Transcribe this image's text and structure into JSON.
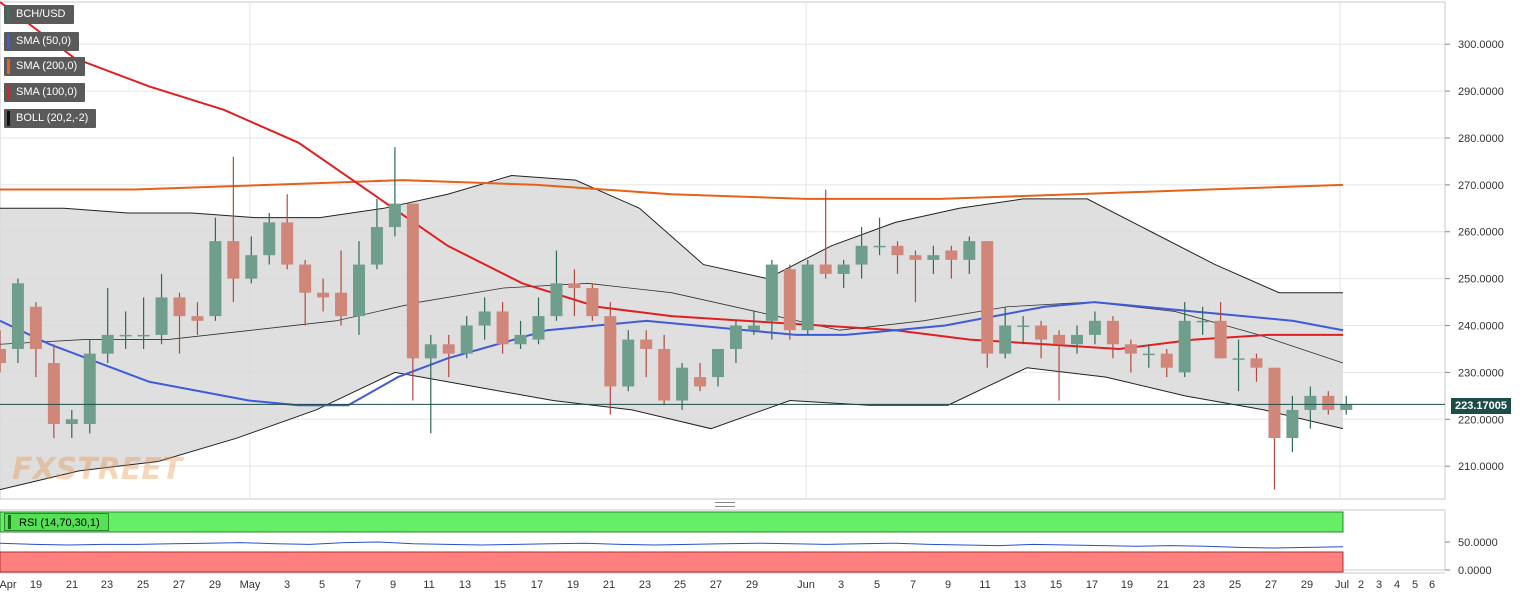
{
  "legend": {
    "items": [
      {
        "label": "BCH/USD",
        "color": "#2b7a5a"
      },
      {
        "label": "SMA (50,0)",
        "color": "#3f5bd9"
      },
      {
        "label": "SMA (200,0)",
        "color": "#e8601a"
      },
      {
        "label": "SMA (100,0)",
        "color": "#e02020"
      },
      {
        "label": "BOLL (20,2,-2)",
        "color": "#111111"
      }
    ]
  },
  "rsi_label": "RSI (14,70,30,1)",
  "last_price": "223.17005",
  "watermark": "FXSTREET",
  "chart_data": {
    "type": "candlestick",
    "symbol": "BCH/USD",
    "y_axis": {
      "min": 203,
      "max": 309,
      "ticks": [
        "300.0000",
        "290.0000",
        "280.0000",
        "270.0000",
        "260.0000",
        "250.0000",
        "240.0000",
        "230.0000",
        "220.0000",
        "210.0000"
      ]
    },
    "x_axis_ticks": [
      "Apr",
      "19",
      "21",
      "23",
      "25",
      "27",
      "29",
      "May",
      "3",
      "5",
      "7",
      "9",
      "11",
      "13",
      "15",
      "17",
      "19",
      "21",
      "23",
      "25",
      "27",
      "29",
      "Jun",
      "3",
      "5",
      "7",
      "9",
      "11",
      "13",
      "15",
      "17",
      "19",
      "21",
      "23",
      "25",
      "27",
      "29",
      "Jul",
      "2",
      "3",
      "4",
      "5",
      "6"
    ],
    "candles": [
      {
        "d": "Apr 17",
        "o": 235,
        "h": 239,
        "l": 230,
        "c": 232
      },
      {
        "d": "Apr 18",
        "o": 235,
        "h": 250,
        "l": 232,
        "c": 249
      },
      {
        "d": "Apr 19",
        "o": 244,
        "h": 245,
        "l": 229,
        "c": 235
      },
      {
        "d": "Apr 20",
        "o": 232,
        "h": 236,
        "l": 216,
        "c": 219
      },
      {
        "d": "Apr 21",
        "o": 219,
        "h": 222,
        "l": 216,
        "c": 220
      },
      {
        "d": "Apr 22",
        "o": 219,
        "h": 237,
        "l": 217,
        "c": 234
      },
      {
        "d": "Apr 23",
        "o": 234,
        "h": 248,
        "l": 232,
        "c": 238
      },
      {
        "d": "Apr 24",
        "o": 238,
        "h": 243,
        "l": 235,
        "c": 238
      },
      {
        "d": "Apr 25",
        "o": 238,
        "h": 246,
        "l": 235,
        "c": 238
      },
      {
        "d": "Apr 26",
        "o": 238,
        "h": 251,
        "l": 236,
        "c": 246
      },
      {
        "d": "Apr 27",
        "o": 246,
        "h": 247,
        "l": 234,
        "c": 242
      },
      {
        "d": "Apr 28",
        "o": 242,
        "h": 245,
        "l": 238,
        "c": 241
      },
      {
        "d": "Apr 29",
        "o": 242,
        "h": 263,
        "l": 241,
        "c": 258
      },
      {
        "d": "Apr 30",
        "o": 258,
        "h": 276,
        "l": 245,
        "c": 250
      },
      {
        "d": "May 1",
        "o": 250,
        "h": 259,
        "l": 249,
        "c": 255
      },
      {
        "d": "May 2",
        "o": 255,
        "h": 264,
        "l": 253,
        "c": 262
      },
      {
        "d": "May 3",
        "o": 262,
        "h": 268,
        "l": 252,
        "c": 253
      },
      {
        "d": "May 4",
        "o": 253,
        "h": 254,
        "l": 240,
        "c": 247
      },
      {
        "d": "May 5",
        "o": 247,
        "h": 250,
        "l": 243,
        "c": 246
      },
      {
        "d": "May 6",
        "o": 247,
        "h": 256,
        "l": 240,
        "c": 242
      },
      {
        "d": "May 7",
        "o": 242,
        "h": 258,
        "l": 238,
        "c": 253
      },
      {
        "d": "May 8",
        "o": 253,
        "h": 267,
        "l": 252,
        "c": 261
      },
      {
        "d": "May 9",
        "o": 261,
        "h": 278,
        "l": 259,
        "c": 266
      },
      {
        "d": "May 10",
        "o": 266,
        "h": 266,
        "l": 224,
        "c": 233
      },
      {
        "d": "May 11",
        "o": 233,
        "h": 238,
        "l": 217,
        "c": 236
      },
      {
        "d": "May 12",
        "o": 236,
        "h": 238,
        "l": 229,
        "c": 234
      },
      {
        "d": "May 13",
        "o": 234,
        "h": 242,
        "l": 233,
        "c": 240
      },
      {
        "d": "May 14",
        "o": 240,
        "h": 246,
        "l": 237,
        "c": 243
      },
      {
        "d": "May 15",
        "o": 243,
        "h": 245,
        "l": 234,
        "c": 236
      },
      {
        "d": "May 16",
        "o": 236,
        "h": 241,
        "l": 235,
        "c": 238
      },
      {
        "d": "May 17",
        "o": 237,
        "h": 246,
        "l": 236,
        "c": 242
      },
      {
        "d": "May 18",
        "o": 242,
        "h": 256,
        "l": 241,
        "c": 249
      },
      {
        "d": "May 19",
        "o": 249,
        "h": 252,
        "l": 242,
        "c": 248
      },
      {
        "d": "May 20",
        "o": 248,
        "h": 249,
        "l": 241,
        "c": 242
      },
      {
        "d": "May 21",
        "o": 242,
        "h": 245,
        "l": 221,
        "c": 227
      },
      {
        "d": "May 22",
        "o": 227,
        "h": 239,
        "l": 226,
        "c": 237
      },
      {
        "d": "May 23",
        "o": 237,
        "h": 239,
        "l": 229,
        "c": 235
      },
      {
        "d": "May 24",
        "o": 235,
        "h": 238,
        "l": 223,
        "c": 224
      },
      {
        "d": "May 25",
        "o": 224,
        "h": 232,
        "l": 222,
        "c": 231
      },
      {
        "d": "May 26",
        "o": 229,
        "h": 232,
        "l": 226,
        "c": 227
      },
      {
        "d": "May 27",
        "o": 229,
        "h": 234,
        "l": 227,
        "c": 235
      },
      {
        "d": "May 28",
        "o": 235,
        "h": 241,
        "l": 232,
        "c": 240
      },
      {
        "d": "May 29",
        "o": 239,
        "h": 243,
        "l": 238,
        "c": 240
      },
      {
        "d": "May 30",
        "o": 241,
        "h": 254,
        "l": 237,
        "c": 253
      },
      {
        "d": "May 31",
        "o": 252,
        "h": 253,
        "l": 237,
        "c": 239
      },
      {
        "d": "Jun 1",
        "o": 239,
        "h": 254,
        "l": 238,
        "c": 253
      },
      {
        "d": "Jun 2",
        "o": 253,
        "h": 269,
        "l": 250,
        "c": 251
      },
      {
        "d": "Jun 3",
        "o": 251,
        "h": 254,
        "l": 248,
        "c": 253
      },
      {
        "d": "Jun 4",
        "o": 253,
        "h": 261,
        "l": 250,
        "c": 257
      },
      {
        "d": "Jun 5",
        "o": 257,
        "h": 263,
        "l": 255,
        "c": 257
      },
      {
        "d": "Jun 6",
        "o": 257,
        "h": 258,
        "l": 251,
        "c": 255
      },
      {
        "d": "Jun 7",
        "o": 255,
        "h": 256,
        "l": 245,
        "c": 254
      },
      {
        "d": "Jun 8",
        "o": 254,
        "h": 257,
        "l": 251,
        "c": 255
      },
      {
        "d": "Jun 9",
        "o": 256,
        "h": 257,
        "l": 250,
        "c": 254
      },
      {
        "d": "Jun 10",
        "o": 254,
        "h": 259,
        "l": 251,
        "c": 258
      },
      {
        "d": "Jun 11",
        "o": 258,
        "h": 258,
        "l": 231,
        "c": 234
      },
      {
        "d": "Jun 12",
        "o": 234,
        "h": 244,
        "l": 233,
        "c": 240
      },
      {
        "d": "Jun 13",
        "o": 240,
        "h": 242,
        "l": 236,
        "c": 240
      },
      {
        "d": "Jun 14",
        "o": 240,
        "h": 241,
        "l": 233,
        "c": 237
      },
      {
        "d": "Jun 15",
        "o": 238,
        "h": 239,
        "l": 224,
        "c": 236
      },
      {
        "d": "Jun 16",
        "o": 236,
        "h": 240,
        "l": 234,
        "c": 238
      },
      {
        "d": "Jun 17",
        "o": 238,
        "h": 243,
        "l": 236,
        "c": 241
      },
      {
        "d": "Jun 18",
        "o": 241,
        "h": 242,
        "l": 233,
        "c": 236
      },
      {
        "d": "Jun 19",
        "o": 236,
        "h": 237,
        "l": 230,
        "c": 234
      },
      {
        "d": "Jun 20",
        "o": 234,
        "h": 236,
        "l": 231,
        "c": 234
      },
      {
        "d": "Jun 21",
        "o": 234,
        "h": 235,
        "l": 229,
        "c": 231
      },
      {
        "d": "Jun 22",
        "o": 230,
        "h": 245,
        "l": 229,
        "c": 241
      },
      {
        "d": "Jun 23",
        "o": 241,
        "h": 244,
        "l": 238,
        "c": 241
      },
      {
        "d": "Jun 24",
        "o": 241,
        "h": 245,
        "l": 233,
        "c": 233
      },
      {
        "d": "Jun 25",
        "o": 233,
        "h": 237,
        "l": 226,
        "c": 233
      },
      {
        "d": "Jun 26",
        "o": 233,
        "h": 234,
        "l": 228,
        "c": 231
      },
      {
        "d": "Jun 27",
        "o": 231,
        "h": 231,
        "l": 205,
        "c": 216
      },
      {
        "d": "Jun 28",
        "o": 216,
        "h": 225,
        "l": 213,
        "c": 222
      },
      {
        "d": "Jun 29",
        "o": 222,
        "h": 227,
        "l": 218,
        "c": 225
      },
      {
        "d": "Jun 30",
        "o": 225,
        "h": 226,
        "l": 221,
        "c": 222
      },
      {
        "d": "Jul 1",
        "o": 222,
        "h": 225,
        "l": 221,
        "c": 223.17
      }
    ],
    "sma50": [
      241,
      236,
      232,
      228,
      226,
      224,
      223,
      223,
      229,
      233,
      236,
      239,
      240,
      241,
      240,
      239,
      238,
      238,
      239,
      240,
      242,
      244,
      245,
      244,
      243,
      242,
      241,
      239
    ],
    "sma100": [
      309,
      297,
      291,
      286,
      279,
      268,
      257,
      249,
      244,
      242,
      241,
      240,
      239,
      237,
      236,
      235,
      237,
      238,
      238
    ],
    "sma200": [
      269,
      269,
      270,
      271,
      270,
      268,
      267,
      267,
      268,
      269,
      270
    ],
    "boll_upper": [
      265,
      265,
      264,
      264,
      263,
      263,
      265,
      268,
      272,
      271,
      265,
      253,
      250,
      257,
      262,
      265,
      267,
      267,
      260,
      253,
      247,
      247
    ],
    "boll_mid": [
      236,
      237,
      237,
      239,
      241,
      245,
      248,
      249,
      247,
      243,
      239,
      241,
      244,
      245,
      243,
      238,
      232
    ],
    "boll_lower": [
      205,
      209,
      211,
      216,
      222,
      230,
      227,
      224,
      222,
      218,
      224,
      223,
      223,
      231,
      229,
      225,
      222,
      218
    ],
    "rsi": {
      "levels": [
        "50.0000",
        "0.0000"
      ]
    }
  }
}
